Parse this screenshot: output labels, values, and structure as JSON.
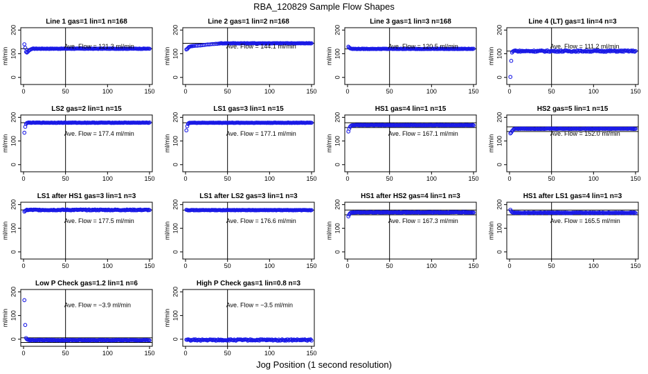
{
  "title": "RBA_120829  Sample Flow Shapes",
  "xlabel": "Jog Position (1 second resolution)",
  "colors": {
    "points": "#1a1ae6",
    "axis": "#000000"
  },
  "chart_data": [
    {
      "type": "scatter",
      "title": "Line 1 gas=1 lin=1 n=168",
      "ylabel": "ml/min",
      "xlim": [
        0,
        150
      ],
      "ylim": [
        -30,
        210
      ],
      "xticks": [
        0,
        50,
        100,
        150
      ],
      "yticks": [
        0,
        100,
        200
      ],
      "vline_x": 50,
      "hlines": [
        121.3
      ],
      "annotation": "Ave. Flow =  121.3  ml/min",
      "early": [
        [
          1,
          140
        ],
        [
          2,
          125
        ],
        [
          3,
          108
        ],
        [
          4,
          105
        ],
        [
          5,
          108
        ],
        [
          6,
          112
        ],
        [
          7,
          115
        ],
        [
          8,
          117
        ],
        [
          9,
          119
        ],
        [
          10,
          120
        ]
      ],
      "plateau": 121.3,
      "noise": 1
    },
    {
      "type": "scatter",
      "title": "Line 2 gas=1 lin=2 n=168",
      "ylabel": "ml/min",
      "xlim": [
        0,
        150
      ],
      "ylim": [
        -30,
        210
      ],
      "xticks": [
        0,
        50,
        100,
        150
      ],
      "yticks": [
        0,
        100,
        200
      ],
      "vline_x": 50,
      "hlines": [
        144.1
      ],
      "annotation": "Ave. Flow =  144.1  ml/min",
      "early": [
        [
          1,
          118
        ],
        [
          2,
          120
        ],
        [
          3,
          124
        ],
        [
          4,
          128
        ],
        [
          5,
          130
        ],
        [
          6,
          131
        ],
        [
          7,
          132
        ],
        [
          8,
          132
        ],
        [
          9,
          133
        ],
        [
          10,
          133
        ],
        [
          12,
          134
        ],
        [
          14,
          134
        ],
        [
          16,
          135
        ],
        [
          18,
          135
        ],
        [
          20,
          136
        ],
        [
          22,
          137
        ],
        [
          24,
          138
        ],
        [
          26,
          139
        ],
        [
          28,
          139
        ],
        [
          30,
          140
        ],
        [
          32,
          141
        ],
        [
          34,
          141
        ],
        [
          36,
          142
        ],
        [
          38,
          142
        ],
        [
          40,
          143
        ]
      ],
      "plateau": 144.1,
      "noise": 1
    },
    {
      "type": "scatter",
      "title": "Line 3 gas=1 lin=3 n=168",
      "ylabel": "ml/min",
      "xlim": [
        0,
        150
      ],
      "ylim": [
        -30,
        210
      ],
      "xticks": [
        0,
        50,
        100,
        150
      ],
      "yticks": [
        0,
        100,
        200
      ],
      "vline_x": 50,
      "hlines": [
        120.5
      ],
      "annotation": "Ave. Flow =  120.5  ml/min",
      "early": [
        [
          1,
          130
        ],
        [
          2,
          126
        ],
        [
          3,
          123
        ],
        [
          4,
          122
        ],
        [
          5,
          121
        ]
      ],
      "plateau": 120.5,
      "noise": 1
    },
    {
      "type": "scatter",
      "title": "Line 4 (LT) gas=1 lin=4 n=3",
      "ylabel": "ml/min",
      "xlim": [
        0,
        150
      ],
      "ylim": [
        -30,
        210
      ],
      "xticks": [
        0,
        50,
        100,
        150
      ],
      "yticks": [
        0,
        100,
        200
      ],
      "vline_x": 50,
      "hlines": [
        111.2
      ],
      "annotation": "Ave. Flow =  111.2  ml/min",
      "early": [
        [
          1,
          2
        ],
        [
          2,
          70
        ],
        [
          3,
          105
        ],
        [
          4,
          110
        ],
        [
          5,
          112
        ],
        [
          6,
          113
        ],
        [
          7,
          114
        ]
      ],
      "plateau": 111.2,
      "noise": 3
    },
    {
      "type": "scatter",
      "title": "LS2 gas=2 lin=1 n=15",
      "ylabel": "ml/min",
      "xlim": [
        0,
        150
      ],
      "ylim": [
        -30,
        210
      ],
      "xticks": [
        0,
        50,
        100,
        150
      ],
      "yticks": [
        0,
        100,
        200
      ],
      "vline_x": 50,
      "hlines": [
        177.4
      ],
      "annotation": "Ave. Flow =  177.4  ml/min",
      "early": [
        [
          1,
          135
        ],
        [
          2,
          160
        ],
        [
          3,
          172
        ],
        [
          4,
          176
        ],
        [
          5,
          177
        ]
      ],
      "plateau": 177.4,
      "noise": 1
    },
    {
      "type": "scatter",
      "title": "LS1 gas=3 lin=1 n=15",
      "ylabel": "ml/min",
      "xlim": [
        0,
        150
      ],
      "ylim": [
        -30,
        210
      ],
      "xticks": [
        0,
        50,
        100,
        150
      ],
      "yticks": [
        0,
        100,
        200
      ],
      "vline_x": 50,
      "hlines": [
        177.1
      ],
      "annotation": "Ave. Flow =  177.1  ml/min",
      "early": [
        [
          1,
          145
        ],
        [
          2,
          162
        ],
        [
          3,
          172
        ],
        [
          4,
          176
        ],
        [
          5,
          177
        ]
      ],
      "plateau": 177.1,
      "noise": 1
    },
    {
      "type": "scatter",
      "title": "HS1 gas=4 lin=1 n=15",
      "ylabel": "ml/min",
      "xlim": [
        0,
        150
      ],
      "ylim": [
        -30,
        210
      ],
      "xticks": [
        0,
        50,
        100,
        150
      ],
      "yticks": [
        0,
        100,
        200
      ],
      "vline_x": 50,
      "hlines": [
        157,
        177
      ],
      "annotation": "Ave. Flow =  167.1  ml/min",
      "early": [
        [
          1,
          140
        ],
        [
          2,
          152
        ],
        [
          3,
          160
        ],
        [
          4,
          164
        ],
        [
          5,
          166
        ]
      ],
      "plateau": 167.1,
      "noise": 1
    },
    {
      "type": "scatter",
      "title": "HS2 gas=5 lin=1 n=15",
      "ylabel": "ml/min",
      "xlim": [
        0,
        150
      ],
      "ylim": [
        -30,
        210
      ],
      "xticks": [
        0,
        50,
        100,
        150
      ],
      "yticks": [
        0,
        100,
        200
      ],
      "vline_x": 50,
      "hlines": [
        140,
        160
      ],
      "annotation": "Ave. Flow =  152.0  ml/min",
      "early": [
        [
          1,
          132
        ],
        [
          2,
          136
        ],
        [
          3,
          142
        ],
        [
          4,
          146
        ],
        [
          5,
          150
        ],
        [
          6,
          151
        ]
      ],
      "plateau": 152.0,
      "noise": 1
    },
    {
      "type": "scatter",
      "title": "LS1 after HS1 gas=3 lin=1 n=3",
      "ylabel": "ml/min",
      "xlim": [
        0,
        150
      ],
      "ylim": [
        -30,
        210
      ],
      "xticks": [
        0,
        50,
        100,
        150
      ],
      "yticks": [
        0,
        100,
        200
      ],
      "vline_x": 50,
      "hlines": [
        177.5
      ],
      "annotation": "Ave. Flow =  177.5  ml/min",
      "early": [
        [
          1,
          170
        ],
        [
          2,
          174
        ],
        [
          3,
          176
        ]
      ],
      "plateau": 177.5,
      "noise": 2
    },
    {
      "type": "scatter",
      "title": "LS1 after LS2 gas=3 lin=1 n=3",
      "ylabel": "ml/min",
      "xlim": [
        0,
        150
      ],
      "ylim": [
        -30,
        210
      ],
      "xticks": [
        0,
        50,
        100,
        150
      ],
      "yticks": [
        0,
        100,
        200
      ],
      "vline_x": 50,
      "hlines": [
        176.6
      ],
      "annotation": "Ave. Flow =  176.6  ml/min",
      "early": [
        [
          1,
          178
        ],
        [
          2,
          177
        ]
      ],
      "plateau": 176.6,
      "noise": 1
    },
    {
      "type": "scatter",
      "title": "HS1 after HS2 gas=4 lin=1 n=3",
      "ylabel": "ml/min",
      "xlim": [
        0,
        150
      ],
      "ylim": [
        -30,
        210
      ],
      "xticks": [
        0,
        50,
        100,
        150
      ],
      "yticks": [
        0,
        100,
        200
      ],
      "vline_x": 50,
      "hlines": [
        157,
        177
      ],
      "annotation": "Ave. Flow =  167.3  ml/min",
      "early": [
        [
          1,
          150
        ],
        [
          2,
          158
        ],
        [
          3,
          163
        ],
        [
          4,
          166
        ]
      ],
      "plateau": 167.3,
      "noise": 1.5
    },
    {
      "type": "scatter",
      "title": "HS1 after LS1 gas=4 lin=1 n=3",
      "ylabel": "ml/min",
      "xlim": [
        0,
        150
      ],
      "ylim": [
        -30,
        210
      ],
      "xticks": [
        0,
        50,
        100,
        150
      ],
      "yticks": [
        0,
        100,
        200
      ],
      "vline_x": 50,
      "hlines": [
        157,
        177
      ],
      "annotation": "Ave. Flow =  165.5  ml/min",
      "early": [
        [
          1,
          178
        ],
        [
          2,
          172
        ],
        [
          3,
          168
        ],
        [
          4,
          166
        ]
      ],
      "plateau": 165.5,
      "noise": 1.5
    },
    {
      "type": "scatter",
      "title": "Low P Check gas=1.2 lin=1 n=6",
      "ylabel": "ml/min",
      "xlim": [
        0,
        150
      ],
      "ylim": [
        -30,
        210
      ],
      "xticks": [
        0,
        50,
        100,
        150
      ],
      "yticks": [
        0,
        100,
        200
      ],
      "vline_x": 50,
      "hlines": [
        -14,
        6
      ],
      "annotation": "Ave. Flow =  −3.9  ml/min",
      "early": [
        [
          1,
          165
        ],
        [
          2,
          60
        ],
        [
          3,
          5
        ],
        [
          4,
          0
        ],
        [
          5,
          -2
        ]
      ],
      "plateau": -3.9,
      "noise": 1.5
    },
    {
      "type": "scatter",
      "title": "High P Check gas=1 lin=0.8 n=3",
      "ylabel": "ml/min",
      "xlim": [
        0,
        150
      ],
      "ylim": [
        -30,
        210
      ],
      "xticks": [
        0,
        50,
        100,
        150
      ],
      "yticks": [
        0,
        100,
        200
      ],
      "vline_x": 50,
      "hlines": [],
      "annotation": "Ave. Flow =  −3.5  ml/min",
      "early": [
        [
          1,
          -2
        ],
        [
          2,
          -3
        ]
      ],
      "plateau": -3.5,
      "noise": 3
    }
  ]
}
